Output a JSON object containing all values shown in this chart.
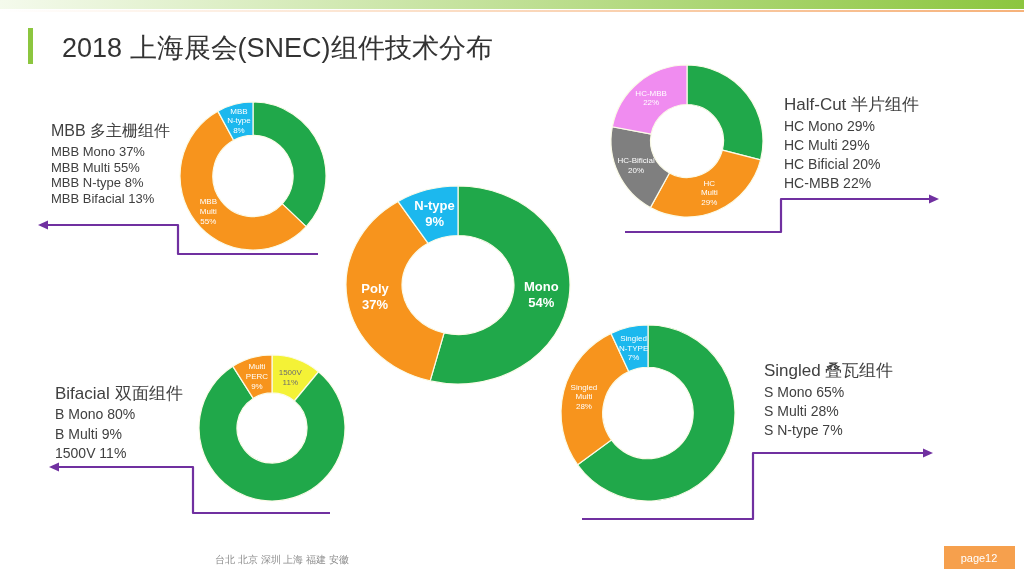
{
  "chart_data": [
    {
      "type": "donut",
      "title": "2018 上海展会(SNEC)组件技术分布",
      "categories": [
        "Mono",
        "Poly",
        "N-type"
      ],
      "values": [
        54,
        37,
        9
      ],
      "colors": [
        "#20a84a",
        "#f7941d",
        "#1cb8ee"
      ],
      "value_labels": [
        "54%",
        "37%",
        "9%"
      ],
      "annotations": [
        "台北 北京 深圳 上海 福建 安徽",
        "page12"
      ]
    },
    {
      "type": "donut",
      "title": "MBB 多主栅组件",
      "categories": [
        null,
        "MBB Multi",
        "MBB N-type"
      ],
      "values": [
        37,
        55,
        8
      ],
      "colors": [
        "#20a84a",
        "#f7941d",
        "#1cb8ee"
      ],
      "value_labels": [
        null,
        "55%",
        "8%"
      ],
      "annotations": [
        "MBB Mono 37%",
        "MBB Multi 55%",
        "MBB N-type 8%",
        "MBB Bifacial 13%"
      ]
    },
    {
      "type": "donut",
      "title": "Half-Cut 半片组件",
      "categories": [
        null,
        "HC Multi",
        "HC-Bificial",
        "HC-MBB"
      ],
      "values": [
        29,
        29,
        20,
        22
      ],
      "colors": [
        "#20a84a",
        "#f7941d",
        "#7f7f7f",
        "#f08cf0"
      ],
      "value_labels": [
        null,
        "29%",
        "20%",
        "22%"
      ],
      "annotations": [
        "HC Mono 29%",
        "HC Multi 29%",
        "HC Bificial 20%",
        "HC-MBB 22%"
      ]
    },
    {
      "type": "donut",
      "title": "Bifacial 双面组件",
      "categories": [
        "1500V",
        null,
        "Multi PERC"
      ],
      "values": [
        11,
        80,
        9
      ],
      "colors": [
        "#f4f236",
        "#20a84a",
        "#f7941d"
      ],
      "value_labels": [
        "11%",
        null,
        "9%"
      ],
      "annotations": [
        "B Mono 80%",
        "B Multi 9%",
        "1500V 11%"
      ]
    },
    {
      "type": "donut",
      "title": "Singled 叠瓦组件",
      "categories": [
        null,
        "Singled Multi",
        "Singled N-TYPE"
      ],
      "values": [
        65,
        28,
        7
      ],
      "colors": [
        "#20a84a",
        "#f7941d",
        "#1cb8ee"
      ],
      "value_labels": [
        null,
        "28%",
        "7%"
      ],
      "annotations": [
        "S Mono 65%",
        "S Multi 28%",
        "S N-type 7%"
      ]
    }
  ]
}
